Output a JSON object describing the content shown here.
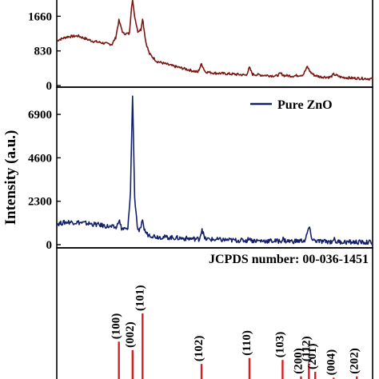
{
  "figure": {
    "ylabel": "Intensity (a.u.)",
    "reference_label": "JCPDS number: 00-036-1451"
  },
  "colors": {
    "top_series": "#7b1712",
    "middle_series": "#15206b",
    "reference_sticks": "#d81e1e",
    "axes": "#000000"
  },
  "chart_data": [
    {
      "type": "line",
      "title": "",
      "xlabel": "",
      "ylabel": "",
      "ylim": [
        0,
        2050
      ],
      "yticks": [
        0,
        830,
        1660
      ],
      "grid": false,
      "series": [
        {
          "color": "#7b1712",
          "x": [
            20,
            22,
            24,
            26,
            27,
            28,
            29.5,
            30.5,
            31.2,
            31.8,
            32.6,
            33.8,
            34.2,
            34.4,
            34.7,
            35.4,
            36.0,
            36.3,
            36.5,
            36.9,
            37.6,
            39,
            42,
            45,
            46.8,
            47.5,
            48.2,
            50,
            54,
            56.0,
            56.6,
            57.2,
            59,
            61.8,
            62.5,
            63.2,
            65,
            66.8,
            67.6,
            68.2,
            68.9,
            70,
            72.0,
            72.6,
            74,
            76,
            78,
            80
          ],
          "values": [
            1080,
            1170,
            1190,
            1100,
            1060,
            1040,
            1000,
            990,
            1150,
            1560,
            1250,
            1240,
            1900,
            2050,
            1720,
            1300,
            1340,
            1620,
            1430,
            1050,
            760,
            580,
            470,
            380,
            320,
            520,
            330,
            300,
            270,
            250,
            430,
            270,
            250,
            230,
            290,
            240,
            230,
            260,
            450,
            320,
            250,
            210,
            200,
            270,
            200,
            180,
            170,
            160
          ]
        }
      ]
    },
    {
      "type": "line",
      "title": "",
      "xlabel": "",
      "ylabel": "",
      "ylim": [
        0,
        8300
      ],
      "yticks": [
        0,
        2300,
        4600,
        6900
      ],
      "grid": false,
      "series": [
        {
          "name": "Pure ZnO",
          "color": "#15206b",
          "x": [
            20,
            22,
            24,
            26,
            28,
            30,
            31.4,
            31.8,
            32.3,
            33.5,
            34.0,
            34.4,
            34.8,
            35.4,
            36.0,
            36.3,
            36.6,
            37.2,
            39,
            42,
            45,
            47.1,
            47.6,
            48.1,
            50,
            54,
            56.2,
            56.6,
            57.0,
            59,
            62.5,
            63.0,
            63.5,
            65,
            67.2,
            67.9,
            68.6,
            70,
            72.2,
            72.6,
            73.0,
            75,
            77,
            80
          ],
          "values": [
            1100,
            1200,
            1180,
            1120,
            1050,
            950,
            900,
            1350,
            850,
            800,
            2800,
            7900,
            2500,
            700,
            800,
            1400,
            800,
            550,
            420,
            370,
            320,
            300,
            850,
            300,
            270,
            230,
            220,
            380,
            220,
            200,
            190,
            300,
            190,
            180,
            220,
            920,
            240,
            170,
            160,
            320,
            160,
            140,
            130,
            120
          ]
        }
      ]
    },
    {
      "type": "bar",
      "title": "",
      "xlabel": "",
      "ylabel": "",
      "ylim": [
        0,
        100
      ],
      "legend": "top-right",
      "series": [
        {
          "name": "JCPDS number: 00-036-1451",
          "color": "#d81e1e",
          "x": [
            31.8,
            34.4,
            36.3,
            47.5,
            56.6,
            62.9,
            66.4,
            67.9,
            69.1,
            72.6,
            77.0
          ],
          "values": [
            57,
            44,
            100,
            23,
            32,
            29,
            4,
            23,
            11,
            2,
            4
          ],
          "labels": [
            "(100)",
            "(002)",
            "(101)",
            "(102)",
            "(110)",
            "(103)",
            "(200)",
            "(112)",
            "(201)",
            "(004)",
            "(202)"
          ]
        }
      ]
    }
  ]
}
